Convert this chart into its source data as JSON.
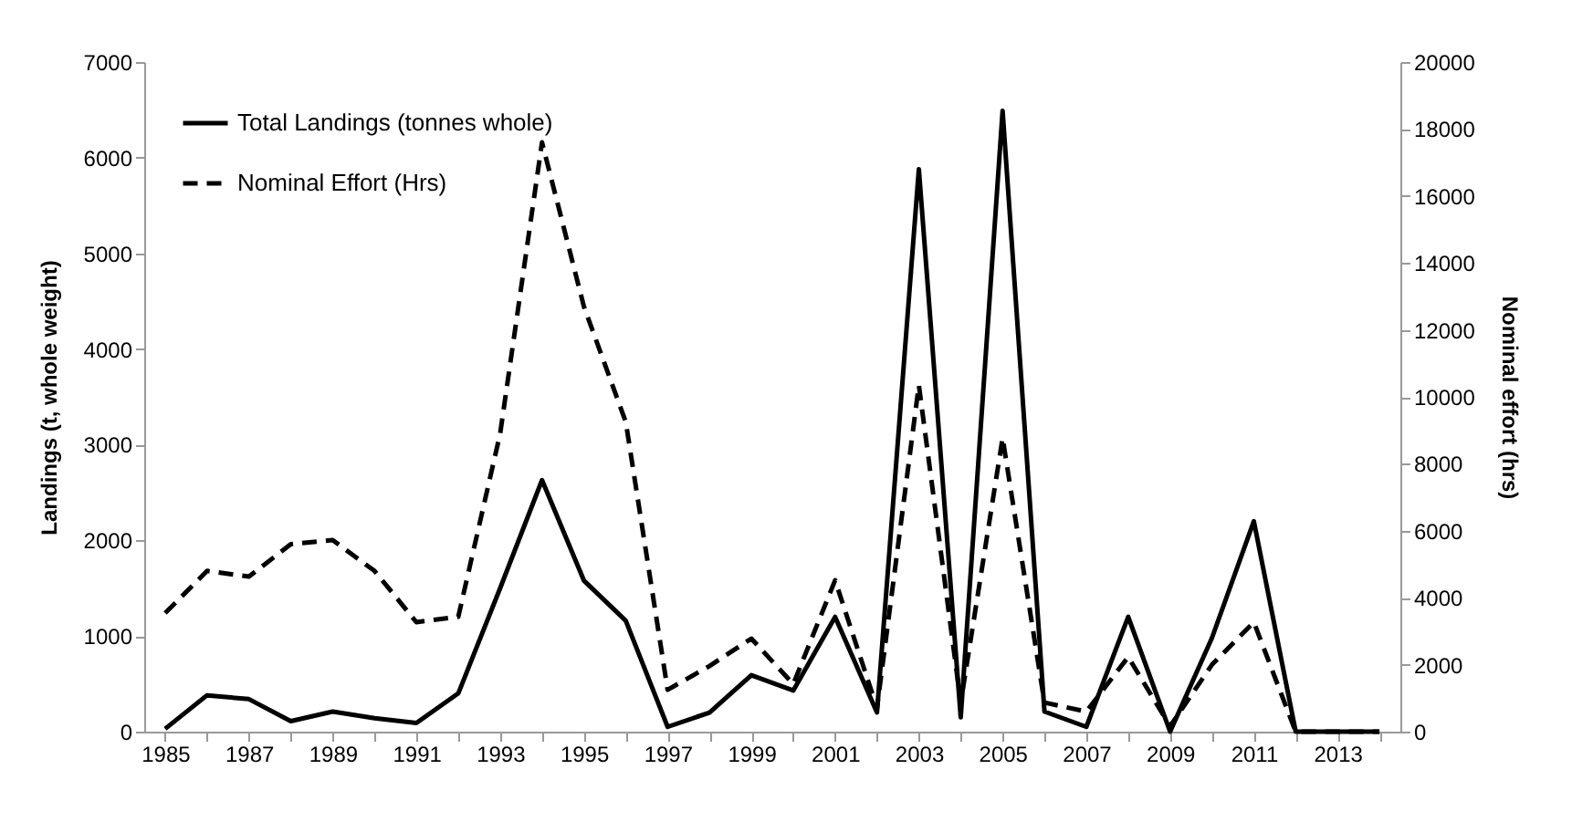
{
  "chart_data": {
    "type": "line",
    "ylabel": "Landings (t, whole weight)",
    "y2label": "Nominal effort (hrs)",
    "categories": [
      "1985",
      null,
      "1987",
      null,
      "1989",
      null,
      "1991",
      null,
      "1993",
      null,
      "1995",
      null,
      "1997",
      null,
      "1999",
      null,
      "2001",
      null,
      "2003",
      null,
      "2005",
      null,
      "2007",
      null,
      "2009",
      null,
      "2011",
      null,
      "2013",
      null
    ],
    "series": [
      {
        "name": "Total Landings (tonnes whole)",
        "color": "#000000",
        "line_style": "solid",
        "values": [
          30,
          380,
          340,
          110,
          210,
          140,
          90,
          400,
          1500,
          2630,
          1580,
          1160,
          50,
          200,
          590,
          430,
          1200,
          200,
          5880,
          150,
          6490,
          210,
          50,
          1200,
          0,
          980,
          2200,
          0,
          0,
          0
        ]
      },
      {
        "name": "Nominal Effort (Hrs)",
        "color": "#000000",
        "line_style": "dashed",
        "axis": "y2",
        "values": [
          3540,
          4800,
          4630,
          5600,
          5720,
          4800,
          3270,
          3430,
          8900,
          17600,
          12700,
          9250,
          1250,
          1960,
          2780,
          1420,
          4520,
          710,
          10350,
          870,
          8770,
          870,
          600,
          2230,
          160,
          2000,
          3270,
          0,
          0,
          0
        ]
      }
    ],
    "ylim": [
      0,
      7000
    ],
    "yticks": [
      0,
      1000,
      2000,
      3000,
      4000,
      5000,
      6000,
      7000
    ],
    "y2lim": [
      0,
      20000
    ],
    "y2ticks": [
      0,
      2000,
      4000,
      6000,
      8000,
      10000,
      12000,
      14000,
      16000,
      18000,
      20000
    ],
    "legend": "top left",
    "grid": false
  }
}
